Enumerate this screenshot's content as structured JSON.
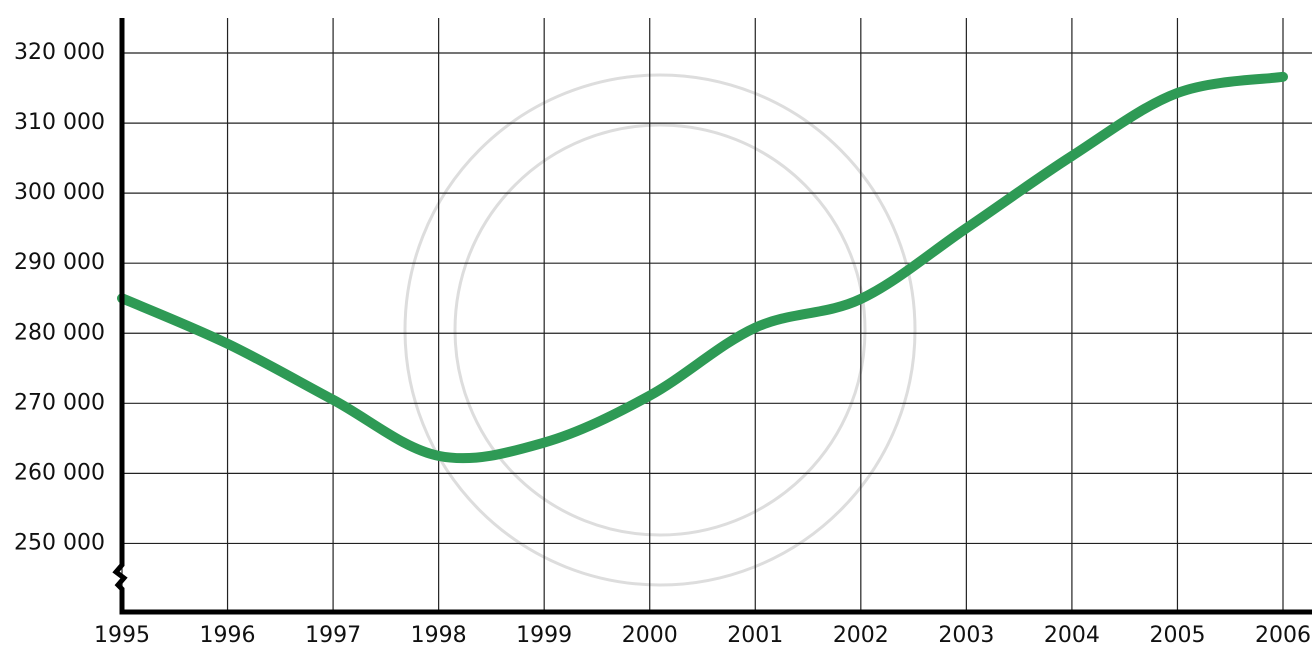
{
  "chart_data": {
    "type": "line",
    "x": [
      1995,
      1996,
      1997,
      1998,
      1999,
      2000,
      2001,
      2002,
      2003,
      2004,
      2005,
      2006
    ],
    "series": [
      {
        "color": "#2e9a55",
        "values": [
          285000,
          278500,
          270500,
          262500,
          264400,
          271100,
          280800,
          284900,
          295000,
          305300,
          314300,
          316600
        ]
      }
    ],
    "xlim": [
      1995,
      2006
    ],
    "xticks": [
      1995,
      1996,
      1997,
      1998,
      1999,
      2000,
      2001,
      2002,
      2003,
      2004,
      2005,
      2006
    ],
    "ylim": [
      240500,
      325000
    ],
    "yticks": [
      {
        "value": 250000,
        "label": "250 000"
      },
      {
        "value": 260000,
        "label": "260 000"
      },
      {
        "value": 270000,
        "label": "270 000"
      },
      {
        "value": 280000,
        "label": "280 000"
      },
      {
        "value": 290000,
        "label": "290 000"
      },
      {
        "value": 300000,
        "label": "300 000"
      },
      {
        "value": 310000,
        "label": "310 000"
      },
      {
        "value": 320000,
        "label": "320 000"
      }
    ],
    "grid": true
  }
}
